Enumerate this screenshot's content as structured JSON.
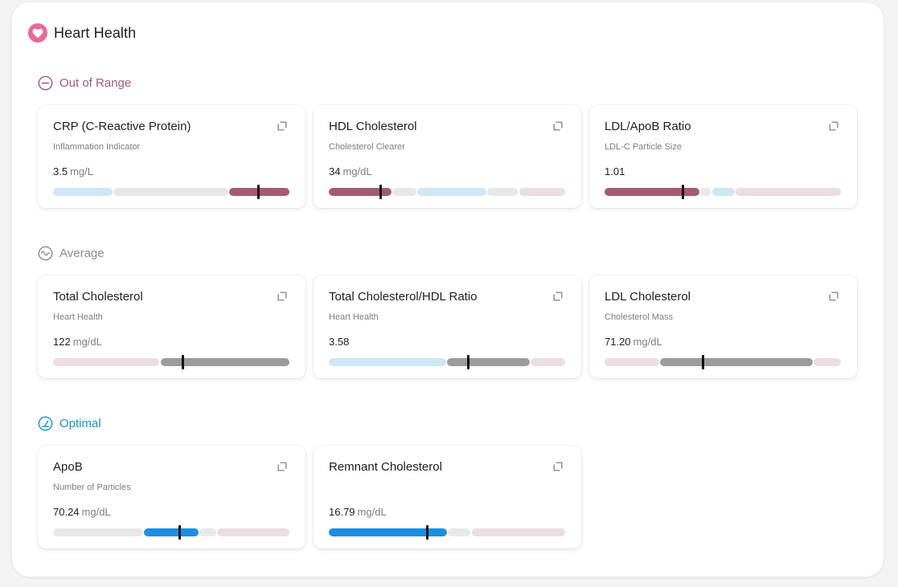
{
  "page": {
    "title": "Heart Health",
    "icon": "heart-icon"
  },
  "sections": [
    {
      "id": "out-of-range",
      "label": "Out of Range",
      "icon": "minus-circle-icon",
      "color": "#a55a73",
      "cards": [
        {
          "name": "CRP (C-Reactive Protein)",
          "subtitle": "Inflammation Indicator",
          "value": "3.5",
          "unit": "mg/L",
          "marker_fraction": 0.87,
          "segments": [
            {
              "start": 0.0,
              "end": 0.25,
              "color": "#cfe6f6"
            },
            {
              "start": 0.255,
              "end": 0.74,
              "color": "#e8e8e9"
            },
            {
              "start": 0.745,
              "end": 1.0,
              "color": "#a55a73"
            }
          ]
        },
        {
          "name": "HDL Cholesterol",
          "subtitle": "Cholesterol Clearer",
          "value": "34",
          "unit": "mg/dL",
          "marker_fraction": 0.22,
          "segments": [
            {
              "start": 0.0,
              "end": 0.265,
              "color": "#a55a73"
            },
            {
              "start": 0.27,
              "end": 0.37,
              "color": "#e8e8e9"
            },
            {
              "start": 0.375,
              "end": 0.665,
              "color": "#cfe6f6"
            },
            {
              "start": 0.67,
              "end": 0.8,
              "color": "#e8e8e9"
            },
            {
              "start": 0.805,
              "end": 1.0,
              "color": "#ebdde2"
            }
          ]
        },
        {
          "name": "LDL/ApoB Ratio",
          "subtitle": "LDL-C Particle Size",
          "value": "1.01",
          "unit": "",
          "marker_fraction": 0.33,
          "segments": [
            {
              "start": 0.0,
              "end": 0.4,
              "color": "#a55a73"
            },
            {
              "start": 0.405,
              "end": 0.45,
              "color": "#e8e8e9"
            },
            {
              "start": 0.455,
              "end": 0.55,
              "color": "#cfe6f6"
            },
            {
              "start": 0.555,
              "end": 1.0,
              "color": "#ebdde2"
            }
          ]
        }
      ]
    },
    {
      "id": "average",
      "label": "Average",
      "icon": "wave-circle-icon",
      "color": "#8b8b90",
      "cards": [
        {
          "name": "Total Cholesterol",
          "subtitle": "Heart Health",
          "value": "122",
          "unit": "mg/dL",
          "marker_fraction": 0.55,
          "segments": [
            {
              "start": 0.0,
              "end": 0.45,
              "color": "#ebdde2"
            },
            {
              "start": 0.455,
              "end": 1.0,
              "color": "#9c9c9e"
            }
          ]
        },
        {
          "name": "Total Cholesterol/HDL Ratio",
          "subtitle": "Heart Health",
          "value": "3.58",
          "unit": "",
          "marker_fraction": 0.59,
          "segments": [
            {
              "start": 0.0,
              "end": 0.495,
              "color": "#cfe6f6"
            },
            {
              "start": 0.5,
              "end": 0.85,
              "color": "#9c9c9e"
            },
            {
              "start": 0.855,
              "end": 1.0,
              "color": "#ebdde2"
            }
          ]
        },
        {
          "name": "LDL Cholesterol",
          "subtitle": "Cholesterol Mass",
          "value": "71.20",
          "unit": "mg/dL",
          "marker_fraction": 0.415,
          "segments": [
            {
              "start": 0.0,
              "end": 0.23,
              "color": "#ebdde2"
            },
            {
              "start": 0.235,
              "end": 0.88,
              "color": "#9c9c9e"
            },
            {
              "start": 0.885,
              "end": 1.0,
              "color": "#ebdde2"
            }
          ]
        }
      ]
    },
    {
      "id": "optimal",
      "label": "Optimal",
      "icon": "gauge-circle-icon",
      "color": "#1597c7",
      "cards": [
        {
          "name": "ApoB",
          "subtitle": "Number of Particles",
          "value": "70.24",
          "unit": "mg/dL",
          "marker_fraction": 0.535,
          "segments": [
            {
              "start": 0.0,
              "end": 0.38,
              "color": "#e8e8e9"
            },
            {
              "start": 0.385,
              "end": 0.615,
              "color": "#1a8fe3"
            },
            {
              "start": 0.62,
              "end": 0.69,
              "color": "#e8e8e9"
            },
            {
              "start": 0.695,
              "end": 1.0,
              "color": "#ebdde2"
            }
          ]
        },
        {
          "name": "Remnant Cholesterol",
          "subtitle": "",
          "value": "16.79",
          "unit": "mg/dL",
          "marker_fraction": 0.415,
          "segments": [
            {
              "start": 0.0,
              "end": 0.5,
              "color": "#1a8fe3"
            },
            {
              "start": 0.505,
              "end": 0.6,
              "color": "#e8e8e9"
            },
            {
              "start": 0.605,
              "end": 1.0,
              "color": "#ebdde2"
            }
          ]
        }
      ]
    }
  ]
}
